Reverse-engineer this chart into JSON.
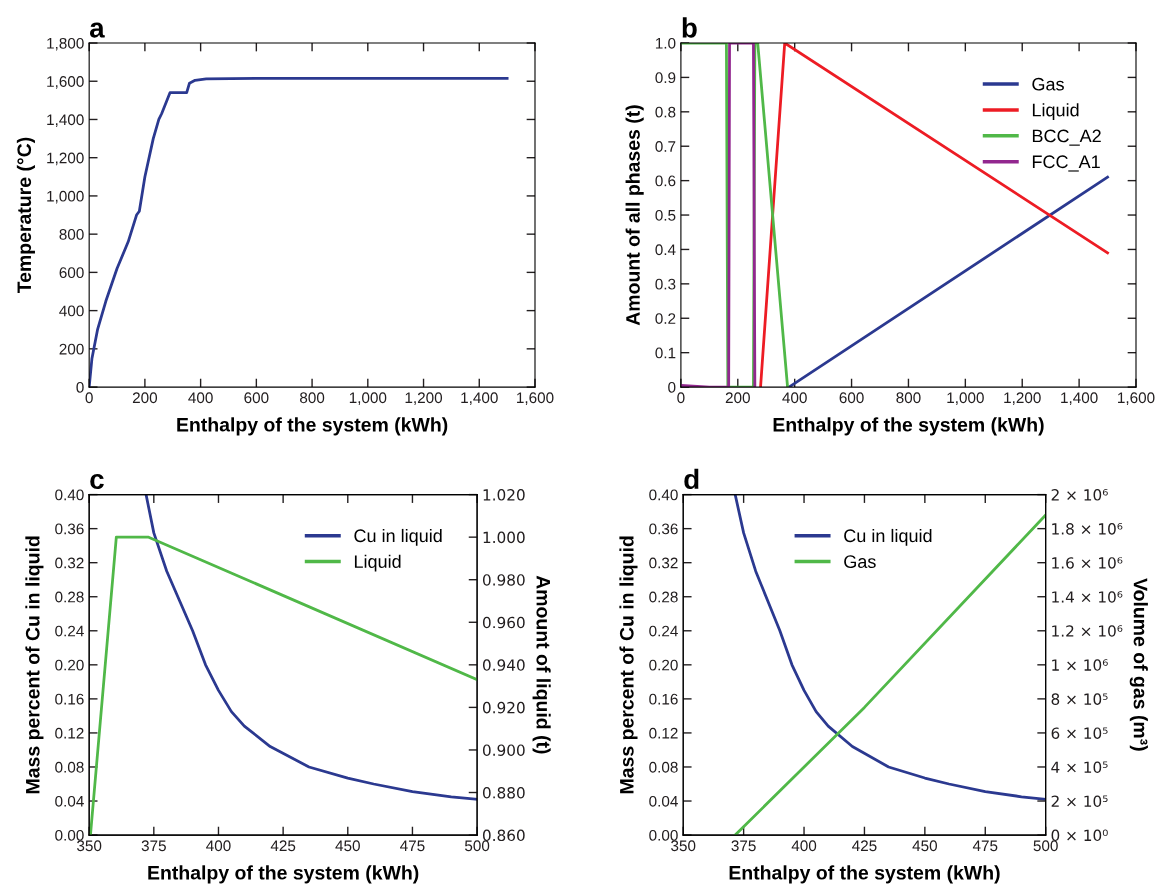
{
  "chart_data": [
    {
      "type": "line",
      "title": "a",
      "xlabel": "Enthalpy of the system (kWh)",
      "ylabel": "Temperature (°C)",
      "xlim": [
        0,
        1600
      ],
      "ylim": [
        0,
        1800
      ],
      "xticks": [
        0,
        200,
        400,
        600,
        800,
        {
          "value": 1000,
          "label": "1,000"
        },
        {
          "value": 1200,
          "label": "1,200"
        },
        {
          "value": 1400,
          "label": "1,400"
        },
        {
          "value": 1600,
          "label": "1,600"
        }
      ],
      "yticks": [
        0,
        200,
        400,
        600,
        800,
        {
          "value": 1000,
          "label": "1,000"
        },
        {
          "value": 1200,
          "label": "1,200"
        },
        {
          "value": 1400,
          "label": "1,400"
        },
        {
          "value": 1600,
          "label": "1,600"
        },
        {
          "value": 1800,
          "label": "1,800"
        }
      ],
      "series": [
        {
          "color": "#2b3990",
          "x": [
            0,
            10,
            30,
            60,
            100,
            140,
            170,
            180,
            200,
            230,
            250,
            260,
            290,
            350,
            360,
            380,
            420,
            600,
            1500
          ],
          "values": [
            0,
            150,
            300,
            450,
            620,
            760,
            900,
            920,
            1100,
            1300,
            1400,
            1430,
            1540,
            1540,
            1590,
            1605,
            1612,
            1615,
            1615
          ]
        }
      ],
      "legend": false,
      "grid": false
    },
    {
      "type": "line",
      "title": "b",
      "xlabel": "Enthalpy of the system (kWh)",
      "ylabel": "Amount of all phases (t)",
      "xlim": [
        0,
        1600
      ],
      "ylim": [
        0,
        1.0
      ],
      "xticks": [
        0,
        200,
        400,
        600,
        800,
        {
          "value": 1000,
          "label": "1,000"
        },
        {
          "value": 1200,
          "label": "1,200"
        },
        {
          "value": 1400,
          "label": "1,400"
        },
        {
          "value": 1600,
          "label": "1,600"
        }
      ],
      "yticks": [
        0,
        0.1,
        0.2,
        0.3,
        0.4,
        0.5,
        0.6,
        0.7,
        0.8,
        0.9,
        {
          "value": 1.0,
          "label": "1.0"
        }
      ],
      "series": [
        {
          "name": "Gas",
          "color": "#2b3990",
          "x": [
            380,
            1500
          ],
          "values": [
            0,
            0.61
          ]
        },
        {
          "name": "Liquid",
          "color": "#ed1c24",
          "x": [
            280,
            365,
            1500
          ],
          "values": [
            0,
            1.0,
            0.39
          ]
        },
        {
          "name": "BCC_A2",
          "color": "#50b848",
          "x": [
            0,
            160,
            165,
            255,
            260,
            270,
            375
          ],
          "values": [
            1.0,
            1.0,
            0,
            0,
            1.0,
            1.0,
            0
          ]
        },
        {
          "name": "FCC_A1",
          "color": "#92278f",
          "x": [
            0,
            100,
            168,
            171,
            255,
            260
          ],
          "values": [
            0.005,
            0,
            0,
            1.0,
            1.0,
            0
          ]
        }
      ],
      "legend": "top right",
      "grid": false
    },
    {
      "type": "line",
      "title": "c",
      "xlabel": "Enthalpy of the system (kWh)",
      "ylabel": "Mass percent of Cu in liquid",
      "y2label": "Amount of liquid (t)",
      "xlim": [
        350,
        500
      ],
      "ylim": [
        0,
        0.4
      ],
      "y2lim": [
        0.86,
        1.02
      ],
      "xticks": [
        350,
        375,
        400,
        425,
        450,
        475,
        500
      ],
      "yticks": [
        {
          "value": 0,
          "label": "0.00"
        },
        {
          "value": 0.04,
          "label": "0.04"
        },
        {
          "value": 0.08,
          "label": "0.08"
        },
        {
          "value": 0.12,
          "label": "0.12"
        },
        {
          "value": 0.16,
          "label": "0.16"
        },
        {
          "value": 0.2,
          "label": "0.20"
        },
        {
          "value": 0.24,
          "label": "0.24"
        },
        {
          "value": 0.28,
          "label": "0.28"
        },
        {
          "value": 0.32,
          "label": "0.32"
        },
        {
          "value": 0.36,
          "label": "0.36"
        },
        {
          "value": 0.4,
          "label": "0.40"
        }
      ],
      "y2ticks": [
        {
          "value": 0.86,
          "label": "0.860"
        },
        {
          "value": 0.88,
          "label": "0.880"
        },
        {
          "value": 0.9,
          "label": "0.900"
        },
        {
          "value": 0.92,
          "label": "0.920"
        },
        {
          "value": 0.94,
          "label": "0.940"
        },
        {
          "value": 0.96,
          "label": "0.960"
        },
        {
          "value": 0.98,
          "label": "0.980"
        },
        {
          "value": 1.0,
          "label": "1.000"
        },
        {
          "value": 1.02,
          "label": "1.020"
        }
      ],
      "series": [
        {
          "name": "Cu in liquid",
          "color": "#2b3990",
          "x": [
            372,
            375,
            380,
            385,
            390,
            395,
            400,
            405,
            410,
            420,
            435,
            450,
            460,
            475,
            490,
            500
          ],
          "values": [
            0.4,
            0.355,
            0.31,
            0.275,
            0.24,
            0.2,
            0.17,
            0.145,
            0.128,
            0.104,
            0.08,
            0.067,
            0.06,
            0.051,
            0.045,
            0.042
          ]
        },
        {
          "name": "Liquid",
          "color": "#50b848",
          "axis": "y2",
          "x": [
            350.5,
            360.5,
            373,
            500
          ],
          "values": [
            0.86,
            1.0,
            1.0,
            0.933
          ]
        }
      ],
      "legend": "top right",
      "grid": false
    },
    {
      "type": "line",
      "title": "d",
      "xlabel": "Enthalpy of the system (kWh)",
      "ylabel": "Mass percent of Cu in liquid",
      "y2label": "Volume of gas (m³)",
      "xlim": [
        350,
        500
      ],
      "ylim": [
        0,
        0.4
      ],
      "y2lim": [
        0,
        2000000
      ],
      "xticks": [
        350,
        375,
        400,
        425,
        450,
        475,
        500
      ],
      "yticks": [
        {
          "value": 0,
          "label": "0.00"
        },
        {
          "value": 0.04,
          "label": "0.04"
        },
        {
          "value": 0.08,
          "label": "0.08"
        },
        {
          "value": 0.12,
          "label": "0.12"
        },
        {
          "value": 0.16,
          "label": "0.16"
        },
        {
          "value": 0.2,
          "label": "0.20"
        },
        {
          "value": 0.24,
          "label": "0.24"
        },
        {
          "value": 0.28,
          "label": "0.28"
        },
        {
          "value": 0.32,
          "label": "0.32"
        },
        {
          "value": 0.36,
          "label": "0.36"
        },
        {
          "value": 0.4,
          "label": "0.40"
        }
      ],
      "y2ticks": [
        {
          "value": 0,
          "label": "0 × 10⁰"
        },
        {
          "value": 200000,
          "label": "2 × 10⁵"
        },
        {
          "value": 400000,
          "label": "4 × 10⁵"
        },
        {
          "value": 600000,
          "label": "6 × 10⁵"
        },
        {
          "value": 800000,
          "label": "8 × 10⁵"
        },
        {
          "value": 1000000,
          "label": "1 × 10⁶"
        },
        {
          "value": 1200000,
          "label": "1.2 × 10⁶"
        },
        {
          "value": 1400000,
          "label": "1.4 × 10⁶"
        },
        {
          "value": 1600000,
          "label": "1.6 × 10⁶"
        },
        {
          "value": 1800000,
          "label": "1.8 × 10⁶"
        },
        {
          "value": 2000000,
          "label": "2 × 10⁶"
        }
      ],
      "series": [
        {
          "name": "Cu in liquid",
          "color": "#2b3990",
          "x": [
            371.5,
            375,
            380,
            385,
            390,
            395,
            400,
            405,
            410,
            420,
            435,
            450,
            460,
            475,
            490,
            500
          ],
          "values": [
            0.4,
            0.355,
            0.31,
            0.275,
            0.24,
            0.2,
            0.17,
            0.145,
            0.128,
            0.104,
            0.08,
            0.067,
            0.06,
            0.051,
            0.045,
            0.042
          ]
        },
        {
          "name": "Gas",
          "color": "#50b848",
          "axis": "y2",
          "x": [
            371.5,
            425,
            500
          ],
          "values": [
            0,
            750000,
            1880000
          ]
        }
      ],
      "legend": "top",
      "grid": false
    }
  ]
}
